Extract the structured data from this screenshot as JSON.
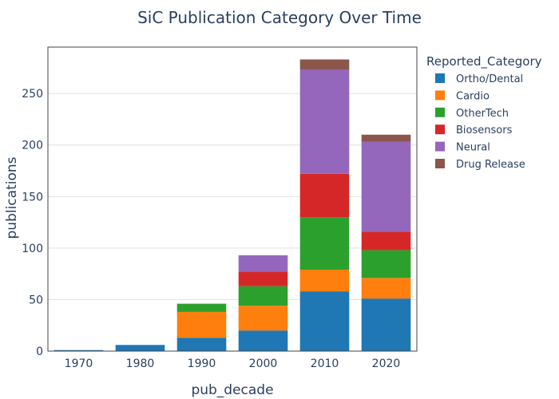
{
  "chart_data": {
    "type": "bar",
    "stacked": true,
    "title": "SiC Publication Category Over Time",
    "xlabel": "pub_decade",
    "ylabel": "publications",
    "categories": [
      "1970",
      "1980",
      "1990",
      "2000",
      "2010",
      "2020"
    ],
    "ylim": [
      0,
      295
    ],
    "yticks": [
      0,
      50,
      100,
      150,
      200,
      250
    ],
    "grid": true,
    "legend": {
      "title": "Reported_Category",
      "position": "right"
    },
    "series": [
      {
        "name": "Ortho/Dental",
        "color": "#1f77b4",
        "values": [
          1,
          6,
          13,
          20,
          58,
          51
        ]
      },
      {
        "name": "Cardio",
        "color": "#ff7f0e",
        "values": [
          0,
          0,
          25,
          24,
          21,
          20
        ]
      },
      {
        "name": "OtherTech",
        "color": "#2ca02c",
        "values": [
          0,
          0,
          8,
          19,
          51,
          27
        ]
      },
      {
        "name": "Biosensors",
        "color": "#d62728",
        "values": [
          0,
          0,
          0,
          14,
          42,
          18
        ]
      },
      {
        "name": "Neural",
        "color": "#9467bd",
        "values": [
          0,
          0,
          0,
          16,
          101,
          87
        ]
      },
      {
        "name": "Drug Release",
        "color": "#8c564b",
        "values": [
          0,
          0,
          0,
          0,
          10,
          7
        ]
      }
    ]
  }
}
